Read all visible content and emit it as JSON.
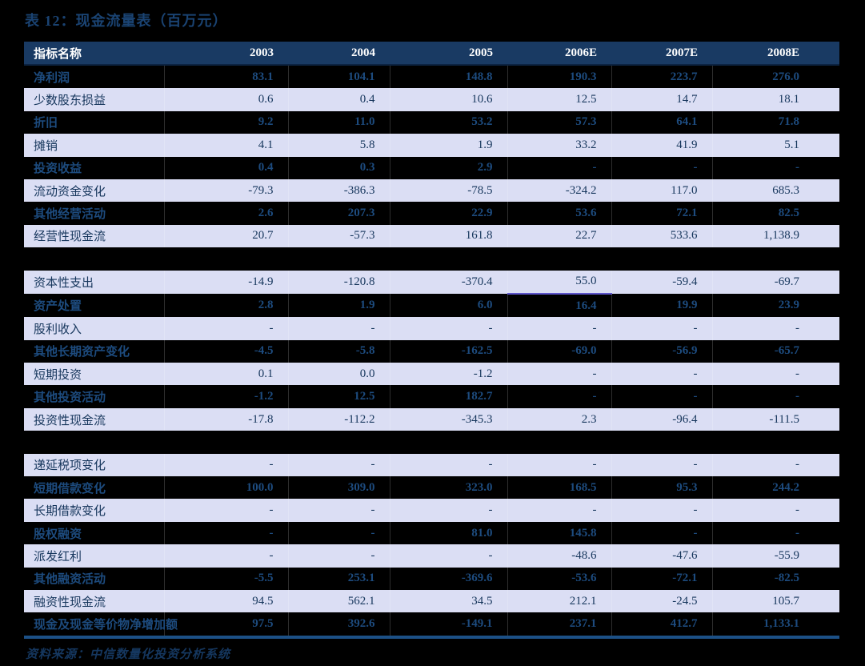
{
  "title": "表 12：现金流量表（百万元）",
  "source": "资料来源：中信数量化投资分析系统",
  "colors": {
    "page_bg": "#000000",
    "header_bg": "#193a63",
    "header_text": "#ffffff",
    "light_row_bg": "#dbdef4",
    "light_row_text": "#16365c",
    "dark_row_text": "#1d4b7e",
    "title_text": "#1a4372",
    "bottom_rule": "#1c5086",
    "accent_underline": "#5e55cc"
  },
  "table": {
    "columns": [
      "指标名称",
      "2003",
      "2004",
      "2005",
      "2006E",
      "2007E",
      "2008E"
    ],
    "rows": [
      {
        "label": "净利润",
        "values": [
          "83.1",
          "104.1",
          "148.8",
          "190.3",
          "223.7",
          "276.0"
        ]
      },
      {
        "label": "少数股东损益",
        "values": [
          "0.6",
          "0.4",
          "10.6",
          "12.5",
          "14.7",
          "18.1"
        ]
      },
      {
        "label": "折旧",
        "values": [
          "9.2",
          "11.0",
          "53.2",
          "57.3",
          "64.1",
          "71.8"
        ]
      },
      {
        "label": "摊销",
        "values": [
          "4.1",
          "5.8",
          "1.9",
          "33.2",
          "41.9",
          "5.1"
        ]
      },
      {
        "label": "投资收益",
        "values": [
          "0.4",
          "0.3",
          "2.9",
          "-",
          "-",
          "-"
        ]
      },
      {
        "label": "流动资金变化",
        "values": [
          "-79.3",
          "-386.3",
          "-78.5",
          "-324.2",
          "117.0",
          "685.3"
        ]
      },
      {
        "label": "其他经营活动",
        "values": [
          "2.6",
          "207.3",
          "22.9",
          "53.6",
          "72.1",
          "82.5"
        ]
      },
      {
        "label": "经营性现金流",
        "values": [
          "20.7",
          "-57.3",
          "161.8",
          "22.7",
          "533.6",
          "1,138.9"
        ]
      },
      {
        "spacer": true
      },
      {
        "label": "资本性支出",
        "values": [
          "-14.9",
          "-120.8",
          "-370.4",
          "55.0",
          "-59.4",
          "-69.7"
        ],
        "accent_col": 3
      },
      {
        "label": "资产处置",
        "values": [
          "2.8",
          "1.9",
          "6.0",
          "16.4",
          "19.9",
          "23.9"
        ]
      },
      {
        "label": "股利收入",
        "values": [
          "-",
          "-",
          "-",
          "-",
          "-",
          "-"
        ]
      },
      {
        "label": "其他长期资产变化",
        "values": [
          "-4.5",
          "-5.8",
          "-162.5",
          "-69.0",
          "-56.9",
          "-65.7"
        ]
      },
      {
        "label": "短期投资",
        "values": [
          "0.1",
          "0.0",
          "-1.2",
          "-",
          "-",
          "-"
        ]
      },
      {
        "label": "其他投资活动",
        "values": [
          "-1.2",
          "12.5",
          "182.7",
          "-",
          "-",
          "-"
        ]
      },
      {
        "label": "投资性现金流",
        "values": [
          "-17.8",
          "-112.2",
          "-345.3",
          "2.3",
          "-96.4",
          "-111.5"
        ]
      },
      {
        "spacer": true
      },
      {
        "label": "递延税项变化",
        "values": [
          "-",
          "-",
          "-",
          "-",
          "-",
          "-"
        ]
      },
      {
        "label": "短期借款变化",
        "values": [
          "100.0",
          "309.0",
          "323.0",
          "168.5",
          "95.3",
          "244.2"
        ]
      },
      {
        "label": "长期借款变化",
        "values": [
          "-",
          "-",
          "-",
          "-",
          "-",
          "-"
        ]
      },
      {
        "label": "股权融资",
        "values": [
          "-",
          "-",
          "81.0",
          "145.8",
          "-",
          "-"
        ]
      },
      {
        "label": "派发红利",
        "values": [
          "-",
          "-",
          "-",
          "-48.6",
          "-47.6",
          "-55.9"
        ]
      },
      {
        "label": "其他融资活动",
        "values": [
          "-5.5",
          "253.1",
          "-369.6",
          "-53.6",
          "-72.1",
          "-82.5"
        ]
      },
      {
        "label": "融资性现金流",
        "values": [
          "94.5",
          "562.1",
          "34.5",
          "212.1",
          "-24.5",
          "105.7"
        ]
      },
      {
        "label": "现金及现金等价物净增加额",
        "values": [
          "97.5",
          "392.6",
          "-149.1",
          "237.1",
          "412.7",
          "1,133.1"
        ]
      }
    ]
  }
}
